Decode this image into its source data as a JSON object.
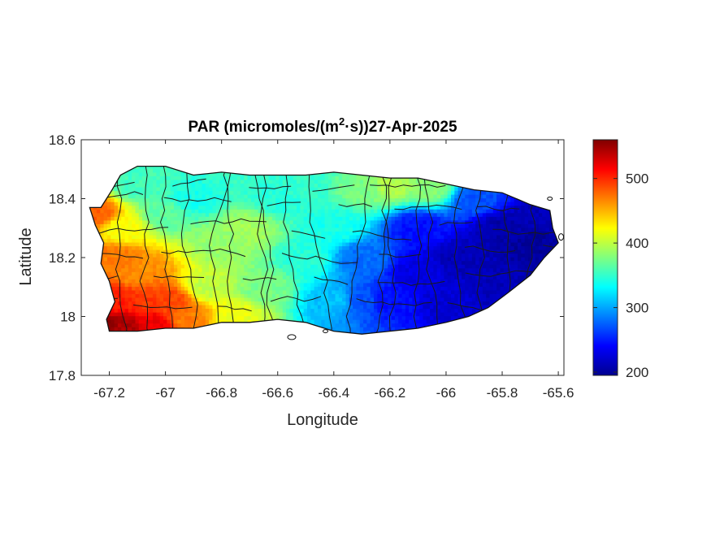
{
  "chart_data": {
    "type": "heatmap",
    "title_main": "PAR (micromoles/(m",
    "title_sup": "2",
    "title_tail": "·s))27-Apr-2025",
    "xlabel": "Longitude",
    "ylabel": "Latitude",
    "xlim": [
      -67.3,
      -65.58
    ],
    "ylim": [
      17.8,
      18.6
    ],
    "xticks": [
      -67.2,
      -67,
      -66.8,
      -66.6,
      -66.4,
      -66.2,
      -66,
      -65.8,
      -65.6
    ],
    "xtick_labels": [
      "-67.2",
      "-67",
      "-66.8",
      "-66.6",
      "-66.4",
      "-66.2",
      "-66",
      "-65.8",
      "-65.6"
    ],
    "yticks": [
      17.8,
      18,
      18.2,
      18.4,
      18.6
    ],
    "ytick_labels": [
      "17.8",
      "18",
      "18.2",
      "18.4",
      "18.6"
    ],
    "colorbar": {
      "colormap": "jet",
      "min": 195,
      "max": 560,
      "ticks": [
        200,
        300,
        400,
        500
      ],
      "tick_labels": [
        "200",
        "300",
        "400",
        "500"
      ]
    },
    "outline_lonlat": [
      [
        -67.27,
        18.37
      ],
      [
        -67.23,
        18.37
      ],
      [
        -67.19,
        18.43
      ],
      [
        -67.16,
        18.48
      ],
      [
        -67.1,
        18.51
      ],
      [
        -67.0,
        18.51
      ],
      [
        -66.9,
        18.48
      ],
      [
        -66.8,
        18.49
      ],
      [
        -66.7,
        18.48
      ],
      [
        -66.6,
        18.48
      ],
      [
        -66.5,
        18.48
      ],
      [
        -66.4,
        18.49
      ],
      [
        -66.3,
        18.48
      ],
      [
        -66.2,
        18.47
      ],
      [
        -66.1,
        18.47
      ],
      [
        -66.0,
        18.45
      ],
      [
        -65.9,
        18.43
      ],
      [
        -65.8,
        18.42
      ],
      [
        -65.7,
        18.38
      ],
      [
        -65.63,
        18.36
      ],
      [
        -65.62,
        18.3
      ],
      [
        -65.6,
        18.25
      ],
      [
        -65.65,
        18.2
      ],
      [
        -65.7,
        18.14
      ],
      [
        -65.78,
        18.08
      ],
      [
        -65.85,
        18.03
      ],
      [
        -65.92,
        18.0
      ],
      [
        -66.0,
        17.98
      ],
      [
        -66.1,
        17.96
      ],
      [
        -66.2,
        17.95
      ],
      [
        -66.3,
        17.94
      ],
      [
        -66.4,
        17.95
      ],
      [
        -66.5,
        17.98
      ],
      [
        -66.6,
        17.99
      ],
      [
        -66.7,
        17.98
      ],
      [
        -66.8,
        17.98
      ],
      [
        -66.9,
        17.96
      ],
      [
        -67.0,
        17.96
      ],
      [
        -67.1,
        17.95
      ],
      [
        -67.15,
        17.95
      ],
      [
        -67.2,
        17.95
      ],
      [
        -67.21,
        17.99
      ],
      [
        -67.18,
        18.05
      ],
      [
        -67.2,
        18.12
      ],
      [
        -67.23,
        18.18
      ],
      [
        -67.22,
        18.25
      ],
      [
        -67.25,
        18.31
      ],
      [
        -67.27,
        18.37
      ]
    ],
    "par_samples": [
      {
        "lon": -67.22,
        "lat": 17.97,
        "par": 555
      },
      {
        "lon": -67.15,
        "lat": 17.97,
        "par": 545
      },
      {
        "lon": -67.05,
        "lat": 17.98,
        "par": 520
      },
      {
        "lon": -67.18,
        "lat": 18.05,
        "par": 505
      },
      {
        "lon": -67.08,
        "lat": 18.05,
        "par": 495
      },
      {
        "lon": -66.98,
        "lat": 18.05,
        "par": 490
      },
      {
        "lon": -66.92,
        "lat": 18.0,
        "par": 470
      },
      {
        "lon": -67.18,
        "lat": 18.2,
        "par": 470
      },
      {
        "lon": -67.1,
        "lat": 18.15,
        "par": 465
      },
      {
        "lon": -67.25,
        "lat": 18.35,
        "par": 480
      },
      {
        "lon": -67.15,
        "lat": 18.3,
        "par": 420
      },
      {
        "lon": -67.1,
        "lat": 18.45,
        "par": 355
      },
      {
        "lon": -67.0,
        "lat": 18.35,
        "par": 365
      },
      {
        "lon": -66.9,
        "lat": 18.4,
        "par": 340
      },
      {
        "lon": -66.85,
        "lat": 18.1,
        "par": 400
      },
      {
        "lon": -66.8,
        "lat": 18.25,
        "par": 385
      },
      {
        "lon": -66.7,
        "lat": 18.3,
        "par": 390
      },
      {
        "lon": -66.75,
        "lat": 18.0,
        "par": 415
      },
      {
        "lon": -66.65,
        "lat": 18.1,
        "par": 375
      },
      {
        "lon": -66.6,
        "lat": 18.4,
        "par": 345
      },
      {
        "lon": -66.5,
        "lat": 18.2,
        "par": 345
      },
      {
        "lon": -66.5,
        "lat": 18.45,
        "par": 350
      },
      {
        "lon": -66.4,
        "lat": 18.05,
        "par": 310
      },
      {
        "lon": -66.4,
        "lat": 18.3,
        "par": 340
      },
      {
        "lon": -66.3,
        "lat": 18.44,
        "par": 375
      },
      {
        "lon": -66.2,
        "lat": 18.45,
        "par": 395
      },
      {
        "lon": -66.05,
        "lat": 18.44,
        "par": 380
      },
      {
        "lon": -66.3,
        "lat": 18.05,
        "par": 270
      },
      {
        "lon": -66.3,
        "lat": 18.2,
        "par": 280
      },
      {
        "lon": -66.2,
        "lat": 18.05,
        "par": 245
      },
      {
        "lon": -66.1,
        "lat": 18.15,
        "par": 230
      },
      {
        "lon": -66.1,
        "lat": 18.3,
        "par": 245
      },
      {
        "lon": -66.0,
        "lat": 18.05,
        "par": 225
      },
      {
        "lon": -65.95,
        "lat": 18.2,
        "par": 215
      },
      {
        "lon": -65.9,
        "lat": 18.4,
        "par": 270
      },
      {
        "lon": -65.8,
        "lat": 18.3,
        "par": 210
      },
      {
        "lon": -65.8,
        "lat": 18.1,
        "par": 215
      },
      {
        "lon": -65.7,
        "lat": 18.25,
        "par": 205
      },
      {
        "lon": -65.65,
        "lat": 18.35,
        "par": 215
      }
    ]
  }
}
